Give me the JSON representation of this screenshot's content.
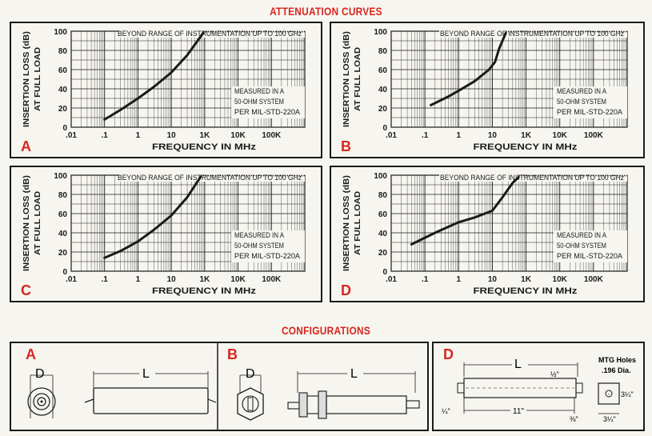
{
  "title": "ATTENUATION CURVES",
  "configurations_title": "CONFIGURATIONS",
  "axes": {
    "ylabel_line1": "INSERTION LOSS (dB)",
    "ylabel_line2": "AT FULL LOAD",
    "xlabel": "FREQUENCY IN MHz",
    "x_ticks": [
      ".01",
      ".1",
      "1",
      "10",
      "1K",
      "10K",
      "100K"
    ],
    "y_ticks": [
      "0",
      "20",
      "40",
      "60",
      "80",
      "100"
    ],
    "banner": "BEYOND RANGE OF INSTRUMENTATION UP TO 100 GHz",
    "note": [
      "MEASURED IN A",
      "50-OHM SYSTEM",
      "PER MIL-STD-220A"
    ]
  },
  "chart_data": [
    {
      "type": "line",
      "panel": "A",
      "x_scale": "log",
      "xlim": [
        0.01,
        100000
      ],
      "ylim": [
        0,
        100
      ],
      "grid": true,
      "series": [
        {
          "x": [
            0.1,
            0.3,
            1,
            3,
            10,
            30,
            90
          ],
          "y": [
            8,
            18,
            30,
            42,
            57,
            75,
            98
          ]
        }
      ]
    },
    {
      "type": "line",
      "panel": "B",
      "x_scale": "log",
      "xlim": [
        0.01,
        100000
      ],
      "ylim": [
        0,
        100
      ],
      "grid": true,
      "series": [
        {
          "x": [
            0.15,
            0.5,
            1,
            3,
            8,
            12,
            16,
            25
          ],
          "y": [
            23,
            32,
            38,
            48,
            60,
            68,
            82,
            98
          ]
        }
      ]
    },
    {
      "type": "line",
      "panel": "C",
      "x_scale": "log",
      "xlim": [
        0.01,
        100000
      ],
      "ylim": [
        0,
        100
      ],
      "grid": true,
      "series": [
        {
          "x": [
            0.1,
            0.3,
            1,
            3,
            10,
            30,
            75
          ],
          "y": [
            14,
            21,
            31,
            43,
            58,
            77,
            98
          ]
        }
      ]
    },
    {
      "type": "line",
      "panel": "D",
      "x_scale": "log",
      "xlim": [
        0.01,
        100000
      ],
      "ylim": [
        0,
        100
      ],
      "grid": true,
      "series": [
        {
          "x": [
            0.04,
            0.2,
            1,
            3,
            10,
            20,
            40,
            60
          ],
          "y": [
            28,
            40,
            51,
            56,
            63,
            77,
            92,
            98
          ]
        }
      ]
    }
  ],
  "configs": {
    "A": {
      "letter": "A",
      "dim_d": "D",
      "dim_l": "L"
    },
    "B": {
      "letter": "B",
      "dim_d": "D",
      "dim_l": "L"
    },
    "D": {
      "letter": "D",
      "dim_l": "L",
      "mtg_holes_1": "MTG Holes",
      "mtg_holes_2": ".196 Dia.",
      "dim_half": "½\"",
      "dim_11": "11\"",
      "dim_quarter": "¼\"",
      "dim_3_8": "⅜\"",
      "dim_3q_1": "3¼\"",
      "dim_3q_2": "3¼\""
    }
  },
  "colors": {
    "accent": "#d7261e",
    "ink": "#1a1a1a",
    "paper": "#f6f5f0"
  }
}
